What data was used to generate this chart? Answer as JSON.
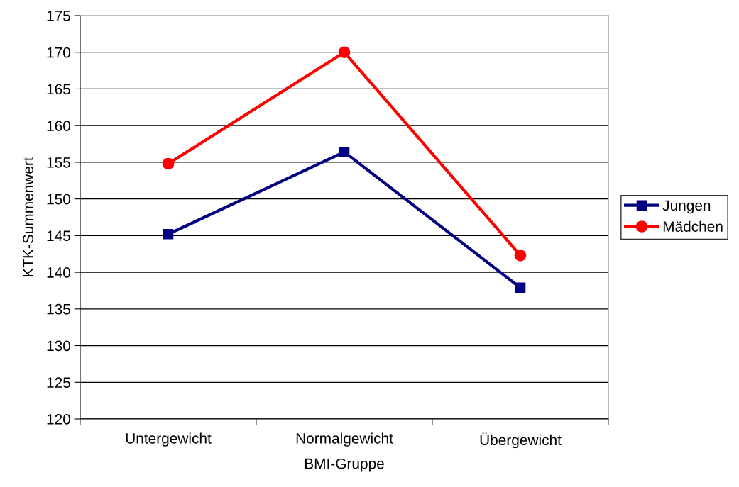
{
  "chart_data": {
    "type": "line",
    "xlabel": "BMI-Gruppe",
    "ylabel": "KTK-Summenwert",
    "categories": [
      "Untergewicht",
      "Normalgewicht",
      "Übergewicht"
    ],
    "series": [
      {
        "name": "Jungen",
        "color": "#000080",
        "values": [
          145.2,
          156.4,
          137.9
        ],
        "marker": "square"
      },
      {
        "name": "Mädchen",
        "color": "#ff0000",
        "values": [
          154.8,
          170.0,
          142.3
        ],
        "marker": "circle"
      }
    ],
    "ylim": [
      120,
      175
    ],
    "yticks": [
      120,
      125,
      130,
      135,
      140,
      145,
      150,
      155,
      160,
      165,
      170,
      175
    ],
    "grid": "y",
    "legend": "right",
    "line_style": "solid"
  }
}
